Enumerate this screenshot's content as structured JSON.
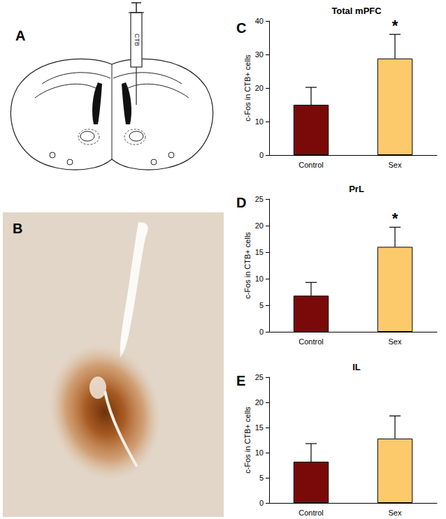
{
  "figure": {
    "panels": [
      {
        "panel_label": "A",
        "syringe_label": "CTB"
      },
      {
        "panel_label": "B"
      }
    ]
  },
  "chart_data": [
    {
      "type": "bar",
      "panel_label": "C",
      "title": "Total mPFC",
      "y_label": "c-Fos in CTB+ cells",
      "categories": [
        "Control",
        "Sex"
      ],
      "values": [
        15,
        28.8
      ],
      "errors": [
        5.2,
        7.2
      ],
      "colors": [
        "#7a0a0a",
        "#fcc96b"
      ],
      "ylim": [
        0,
        40
      ],
      "yticks": [
        0,
        10,
        20,
        30,
        40
      ],
      "grid": false,
      "annotations": [
        {
          "category": "Sex",
          "text": "*"
        }
      ]
    },
    {
      "type": "bar",
      "panel_label": "D",
      "title": "PrL",
      "y_label": "c-Fos in CTB+ cells",
      "categories": [
        "Control",
        "Sex"
      ],
      "values": [
        6.8,
        16
      ],
      "errors": [
        2.5,
        3.7
      ],
      "colors": [
        "#7a0a0a",
        "#fcc96b"
      ],
      "ylim": [
        0,
        25
      ],
      "yticks": [
        0,
        5,
        10,
        15,
        20,
        25
      ],
      "grid": false,
      "annotations": [
        {
          "category": "Sex",
          "text": "*"
        }
      ]
    },
    {
      "type": "bar",
      "panel_label": "E",
      "title": "IL",
      "y_label": "c-Fos in CTB+ cells",
      "categories": [
        "Control",
        "Sex"
      ],
      "values": [
        8.2,
        12.8
      ],
      "errors": [
        3.6,
        4.5
      ],
      "colors": [
        "#7a0a0a",
        "#fcc96b"
      ],
      "ylim": [
        0,
        25
      ],
      "yticks": [
        0,
        5,
        10,
        15,
        20,
        25
      ],
      "grid": false,
      "annotations": []
    }
  ]
}
